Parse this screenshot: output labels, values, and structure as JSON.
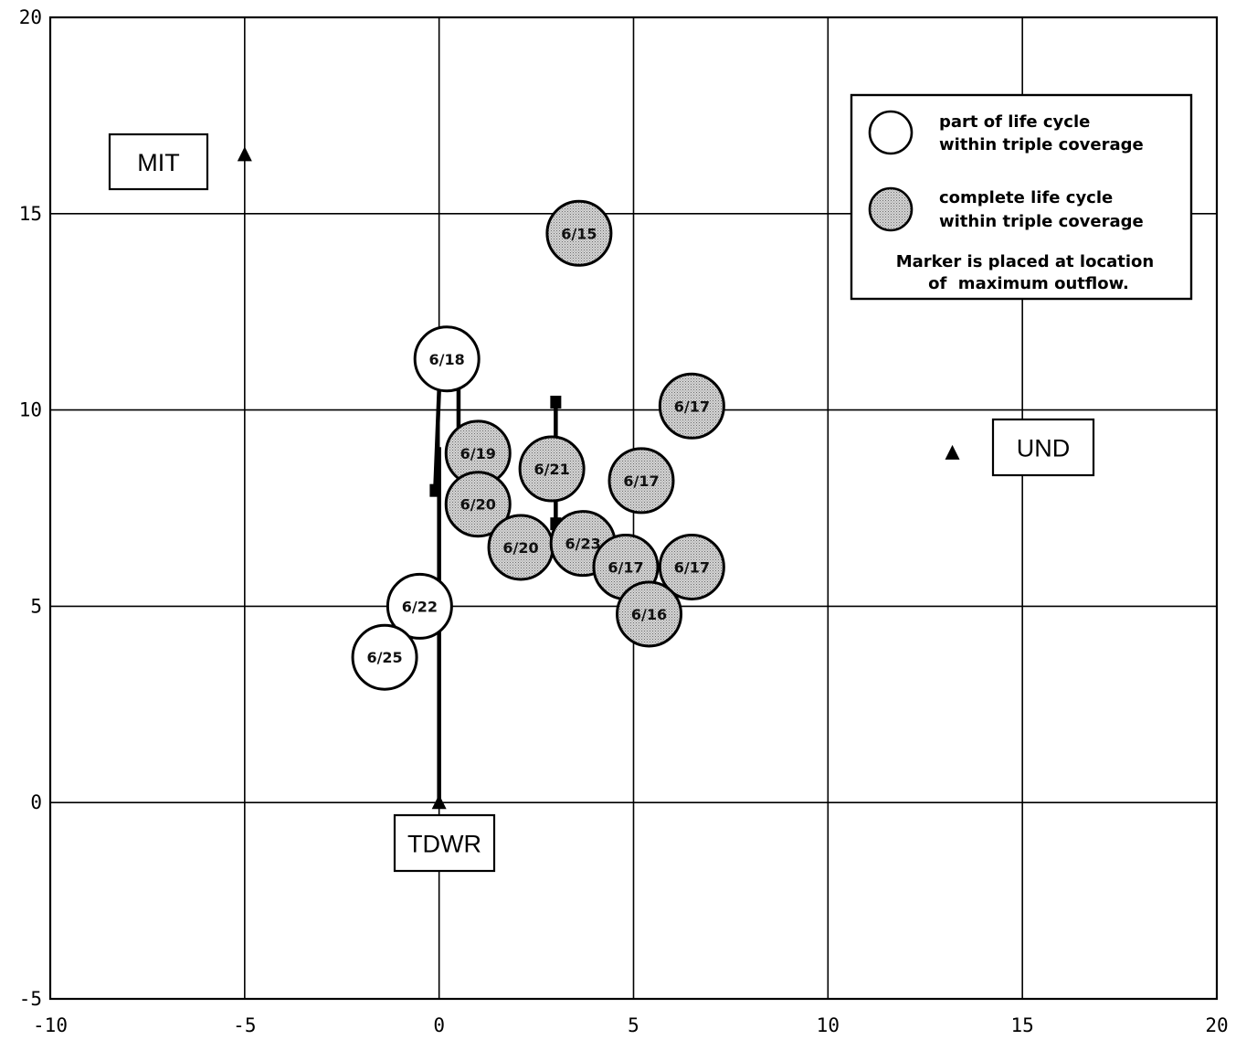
{
  "chart_data": {
    "type": "scatter",
    "title": "",
    "xlabel": "",
    "ylabel": "",
    "xlim": [
      -10,
      20
    ],
    "ylim": [
      -5,
      20
    ],
    "x_ticks": [
      "-10",
      "-5",
      "0",
      "5",
      "10",
      "15",
      "20"
    ],
    "y_ticks": [
      "-5",
      "0",
      "5",
      "10",
      "15",
      "20"
    ],
    "grid": true,
    "colors": {
      "complete": "#bdbdbd",
      "partial": "#ffffff",
      "line": "#000000"
    },
    "stations": [
      {
        "name": "MIT",
        "x": -5.0,
        "y": 16.5
      },
      {
        "name": "TDWR",
        "x": 0.0,
        "y": 0.0
      },
      {
        "name": "UND",
        "x": 13.2,
        "y": 8.9
      }
    ],
    "series": [
      {
        "name": "part of life cycle within triple coverage",
        "marker": "open-circle",
        "points": [
          {
            "label": "6/18",
            "x": 0.2,
            "y": 11.3
          },
          {
            "label": "6/22",
            "x": -0.5,
            "y": 5.0
          },
          {
            "label": "6/25",
            "x": -1.4,
            "y": 3.7
          }
        ]
      },
      {
        "name": "complete life cycle within triple coverage",
        "marker": "filled-circle",
        "points": [
          {
            "label": "6/15",
            "x": 3.6,
            "y": 14.5
          },
          {
            "label": "6/17",
            "x": 6.5,
            "y": 10.1
          },
          {
            "label": "6/19",
            "x": 1.0,
            "y": 8.9
          },
          {
            "label": "6/21",
            "x": 2.9,
            "y": 8.5
          },
          {
            "label": "6/17",
            "x": 5.2,
            "y": 8.2
          },
          {
            "label": "6/20",
            "x": 1.0,
            "y": 7.6
          },
          {
            "label": "6/20",
            "x": 2.1,
            "y": 6.5
          },
          {
            "label": "6/23",
            "x": 3.7,
            "y": 6.6
          },
          {
            "label": "6/17",
            "x": 4.8,
            "y": 6.0
          },
          {
            "label": "6/17",
            "x": 6.5,
            "y": 6.0
          },
          {
            "label": "6/16",
            "x": 5.4,
            "y": 4.8
          }
        ]
      }
    ],
    "tracks": [
      {
        "points": [
          [
            0.0,
            10.5
          ],
          [
            -0.1,
            8.0
          ]
        ],
        "end_marker": [
          -0.1,
          7.95
        ]
      },
      {
        "points": [
          [
            0.5,
            10.5
          ],
          [
            0.5,
            8.5
          ]
        ]
      },
      {
        "points": [
          [
            0.0,
            9.0
          ],
          [
            0.0,
            0.0
          ]
        ]
      },
      {
        "points": [
          [
            3.0,
            10.2
          ],
          [
            3.0,
            9.1
          ]
        ],
        "end_marker": [
          3.0,
          10.2
        ]
      },
      {
        "points": [
          [
            3.0,
            7.8
          ],
          [
            3.0,
            7.1
          ]
        ],
        "end_marker": [
          3.0,
          7.1
        ]
      }
    ],
    "legend": {
      "position": "top-right",
      "entries": [
        {
          "marker": "open-circle",
          "lines": [
            "part of life cycle",
            "within triple coverage"
          ]
        },
        {
          "marker": "filled-circle",
          "lines": [
            "complete life cycle",
            "within triple coverage"
          ]
        }
      ],
      "note": [
        "Marker is placed at location",
        "of  maximum outflow."
      ]
    }
  }
}
